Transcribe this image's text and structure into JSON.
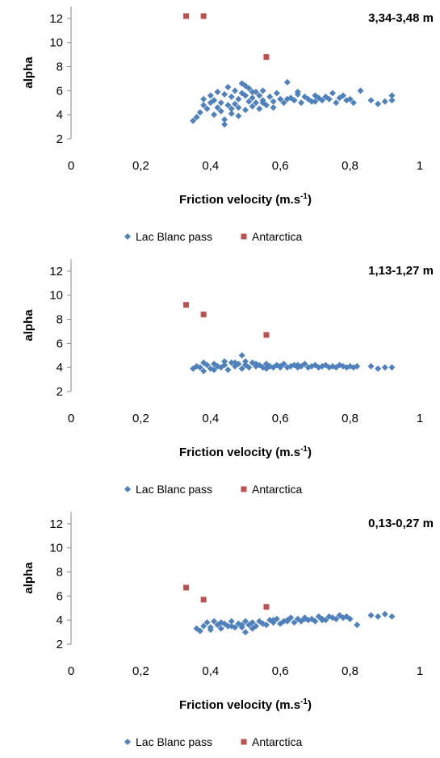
{
  "colors": {
    "lac_blanc": "#4f81bd",
    "antarctica": "#c0504d",
    "axis": "#888888"
  },
  "chart_data": [
    {
      "type": "scatter",
      "height_label": "3,34-3,48 m",
      "xlabel_main": "Friction velocity (m.s",
      "xlabel_sup": "-1",
      "xlabel_close": ")",
      "ylabel": "alpha",
      "xlim": [
        0,
        1
      ],
      "ylim": [
        2,
        13
      ],
      "xticks": [
        "0",
        "0,2",
        "0,4",
        "0,6",
        "0,8",
        "1"
      ],
      "yticks": [
        "2",
        "4",
        "6",
        "8",
        "10",
        "12"
      ],
      "grid": false,
      "legend_position": "bottom",
      "series": [
        {
          "name": "Lac Blanc pass",
          "marker": "diamond",
          "color": "#4f81bd",
          "x": [
            0.35,
            0.36,
            0.37,
            0.38,
            0.38,
            0.39,
            0.4,
            0.4,
            0.41,
            0.41,
            0.42,
            0.42,
            0.43,
            0.43,
            0.44,
            0.44,
            0.45,
            0.45,
            0.46,
            0.46,
            0.47,
            0.47,
            0.48,
            0.48,
            0.49,
            0.49,
            0.5,
            0.5,
            0.51,
            0.51,
            0.52,
            0.52,
            0.53,
            0.53,
            0.54,
            0.54,
            0.55,
            0.55,
            0.56,
            0.57,
            0.58,
            0.59,
            0.6,
            0.61,
            0.62,
            0.63,
            0.64,
            0.65,
            0.66,
            0.67,
            0.68,
            0.69,
            0.7,
            0.71,
            0.72,
            0.73,
            0.74,
            0.75,
            0.76,
            0.77,
            0.78,
            0.79,
            0.8,
            0.81,
            0.83,
            0.86,
            0.88,
            0.9,
            0.92,
            0.92,
            0.44,
            0.46,
            0.48,
            0.5,
            0.52,
            0.55,
            0.58,
            0.62,
            0.65,
            0.7
          ],
          "y": [
            3.5,
            3.8,
            4.2,
            4.8,
            5.3,
            4.5,
            5.0,
            5.6,
            4.0,
            5.2,
            4.6,
            5.9,
            4.3,
            5.0,
            3.2,
            5.7,
            4.8,
            6.3,
            4.1,
            5.5,
            4.9,
            6.0,
            4.6,
            5.3,
            5.8,
            6.6,
            4.4,
            5.6,
            5.1,
            6.2,
            4.7,
            5.4,
            5.0,
            5.9,
            4.5,
            5.6,
            5.2,
            6.0,
            4.8,
            5.5,
            5.1,
            5.8,
            5.3,
            5.0,
            6.7,
            5.4,
            5.2,
            5.7,
            5.0,
            5.5,
            5.3,
            5.1,
            5.6,
            5.4,
            5.2,
            5.5,
            5.3,
            5.8,
            5.0,
            5.4,
            5.6,
            5.2,
            5.3,
            5.0,
            6.0,
            5.2,
            4.9,
            5.1,
            5.6,
            5.2,
            3.6,
            4.5,
            3.9,
            6.4,
            5.9,
            5.0,
            4.6,
            5.3,
            5.9,
            5.1
          ]
        },
        {
          "name": "Antarctica",
          "marker": "square",
          "color": "#c0504d",
          "x": [
            0.33,
            0.38,
            0.56
          ],
          "y": [
            12.2,
            12.2,
            8.8
          ]
        }
      ]
    },
    {
      "type": "scatter",
      "height_label": "1,13-1,27 m",
      "xlabel_main": "Friction velocity (m.s",
      "xlabel_sup": "-1",
      "xlabel_close": ")",
      "ylabel": "alpha",
      "xlim": [
        0,
        1
      ],
      "ylim": [
        2,
        13
      ],
      "xticks": [
        "0",
        "0,2",
        "0,4",
        "0,6",
        "0,8",
        "1"
      ],
      "yticks": [
        "2",
        "4",
        "6",
        "8",
        "10",
        "12"
      ],
      "grid": false,
      "legend_position": "bottom",
      "series": [
        {
          "name": "Lac Blanc pass",
          "marker": "diamond",
          "color": "#4f81bd",
          "x": [
            0.35,
            0.36,
            0.37,
            0.38,
            0.39,
            0.4,
            0.41,
            0.42,
            0.43,
            0.44,
            0.45,
            0.46,
            0.47,
            0.48,
            0.49,
            0.49,
            0.5,
            0.51,
            0.52,
            0.53,
            0.54,
            0.55,
            0.56,
            0.57,
            0.58,
            0.59,
            0.6,
            0.61,
            0.62,
            0.63,
            0.64,
            0.65,
            0.66,
            0.67,
            0.68,
            0.69,
            0.7,
            0.71,
            0.72,
            0.73,
            0.74,
            0.75,
            0.76,
            0.77,
            0.78,
            0.79,
            0.8,
            0.81,
            0.82,
            0.86,
            0.88,
            0.9,
            0.92,
            0.38,
            0.41,
            0.44,
            0.47,
            0.5,
            0.53,
            0.56,
            0.6,
            0.65
          ],
          "y": [
            3.9,
            4.1,
            4.0,
            4.4,
            4.2,
            3.9,
            4.3,
            4.1,
            4.0,
            4.2,
            3.8,
            4.4,
            4.1,
            4.3,
            5.0,
            3.9,
            4.2,
            4.0,
            4.4,
            4.1,
            4.2,
            4.0,
            4.3,
            4.1,
            4.0,
            4.2,
            4.1,
            4.3,
            4.0,
            4.1,
            4.2,
            4.0,
            4.1,
            4.3,
            4.0,
            4.1,
            4.2,
            4.0,
            4.1,
            4.2,
            4.0,
            4.1,
            4.0,
            4.2,
            4.1,
            4.0,
            4.1,
            4.0,
            4.1,
            4.1,
            3.9,
            4.0,
            4.0,
            3.7,
            3.8,
            4.5,
            4.4,
            4.5,
            4.3,
            3.9,
            4.0,
            4.2
          ]
        },
        {
          "name": "Antarctica",
          "marker": "square",
          "color": "#c0504d",
          "x": [
            0.33,
            0.38,
            0.56
          ],
          "y": [
            9.2,
            8.4,
            6.7
          ]
        }
      ]
    },
    {
      "type": "scatter",
      "height_label": "0,13-0,27 m",
      "xlabel_main": "Friction velocity (m.s",
      "xlabel_sup": "-1",
      "xlabel_close": ")",
      "ylabel": "alpha",
      "xlim": [
        0,
        1
      ],
      "ylim": [
        2,
        13
      ],
      "xticks": [
        "0",
        "0,2",
        "0,4",
        "0,6",
        "0,8",
        "1"
      ],
      "yticks": [
        "2",
        "4",
        "6",
        "8",
        "10",
        "12"
      ],
      "grid": false,
      "legend_position": "bottom",
      "series": [
        {
          "name": "Lac Blanc pass",
          "marker": "diamond",
          "color": "#4f81bd",
          "x": [
            0.36,
            0.37,
            0.38,
            0.39,
            0.4,
            0.41,
            0.42,
            0.43,
            0.44,
            0.45,
            0.46,
            0.47,
            0.48,
            0.49,
            0.5,
            0.5,
            0.51,
            0.52,
            0.53,
            0.54,
            0.55,
            0.56,
            0.57,
            0.58,
            0.59,
            0.6,
            0.61,
            0.62,
            0.63,
            0.64,
            0.65,
            0.66,
            0.67,
            0.68,
            0.69,
            0.7,
            0.71,
            0.72,
            0.73,
            0.74,
            0.75,
            0.76,
            0.77,
            0.78,
            0.79,
            0.8,
            0.82,
            0.86,
            0.88,
            0.9,
            0.92,
            0.4,
            0.43,
            0.46,
            0.49,
            0.52,
            0.55,
            0.58,
            0.62,
            0.67,
            0.72
          ],
          "y": [
            3.3,
            3.1,
            3.5,
            3.8,
            3.4,
            3.9,
            3.6,
            3.3,
            3.7,
            3.5,
            3.9,
            3.4,
            3.7,
            3.6,
            3.0,
            3.9,
            3.6,
            3.8,
            3.5,
            3.9,
            3.7,
            3.6,
            4.0,
            3.8,
            4.1,
            3.7,
            3.9,
            4.0,
            4.2,
            3.8,
            4.1,
            3.9,
            4.2,
            4.0,
            4.1,
            3.9,
            4.3,
            4.1,
            4.0,
            4.3,
            4.2,
            4.1,
            4.4,
            4.2,
            4.3,
            4.1,
            3.6,
            4.4,
            4.3,
            4.5,
            4.3,
            3.2,
            3.8,
            3.5,
            3.4,
            3.3,
            3.7,
            4.0,
            3.9,
            4.1,
            4.0
          ]
        },
        {
          "name": "Antarctica",
          "marker": "square",
          "color": "#c0504d",
          "x": [
            0.33,
            0.38,
            0.56
          ],
          "y": [
            6.7,
            5.7,
            5.1
          ]
        }
      ]
    }
  ]
}
